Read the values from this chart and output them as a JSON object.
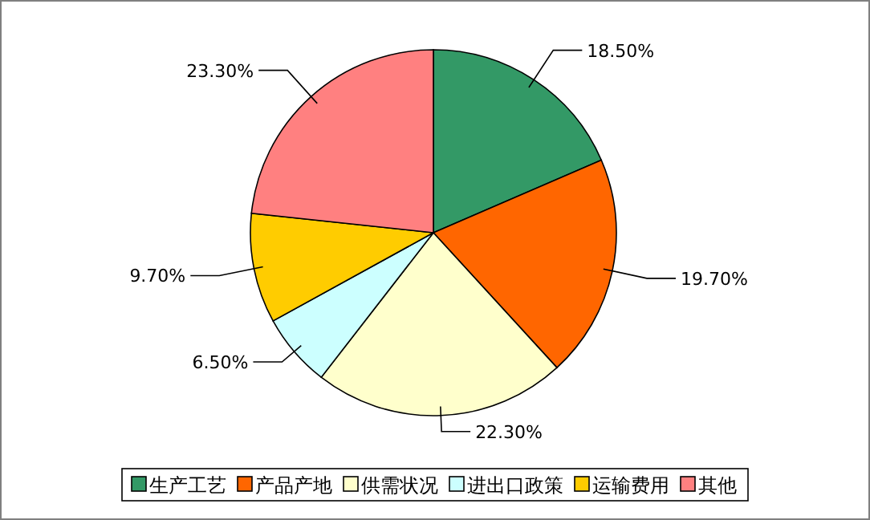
{
  "chart_data": {
    "type": "pie",
    "categories": [
      "生产工艺",
      "产品产地",
      "供需状况",
      "进出口政策",
      "运输费用",
      "其他"
    ],
    "values": [
      18.5,
      19.7,
      22.3,
      6.5,
      9.7,
      23.3
    ],
    "value_labels": [
      "18.50%",
      "19.70%",
      "22.30%",
      "6.50%",
      "9.70%",
      "23.30%"
    ],
    "colors": [
      "#339966",
      "#ff6600",
      "#ffffcc",
      "#ccffff",
      "#ffcc00",
      "#ff8080"
    ],
    "legend": "bottom"
  }
}
